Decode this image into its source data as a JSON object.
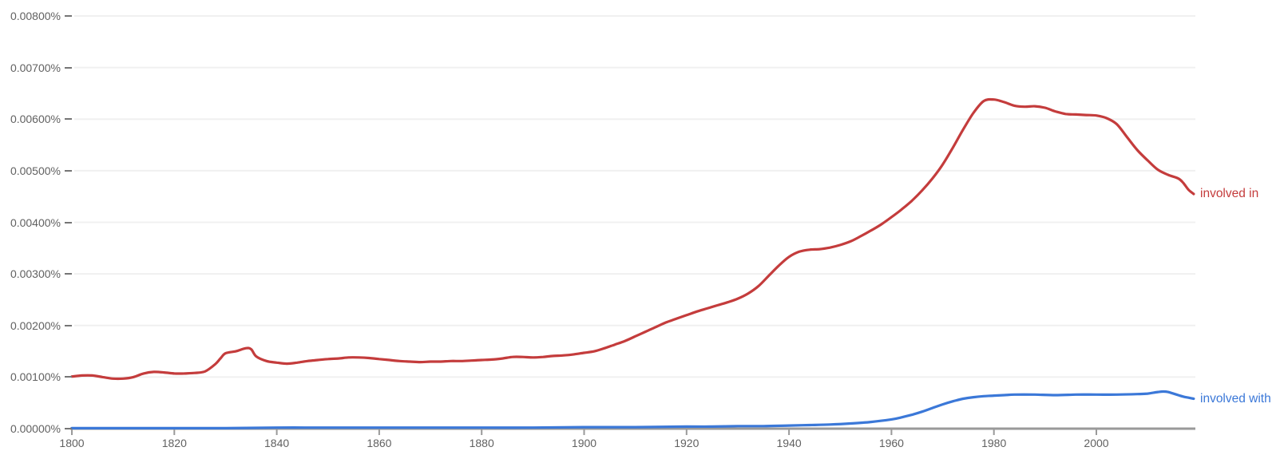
{
  "chart_data": {
    "type": "line",
    "title": "",
    "xlabel": "",
    "ylabel": "",
    "xlim": [
      1800,
      2019
    ],
    "ylim": [
      0,
      0.008
    ],
    "grid": "horizontal",
    "legend_position": "end-of-line-labels",
    "x_ticks": [
      1800,
      1820,
      1840,
      1860,
      1880,
      1900,
      1920,
      1940,
      1960,
      1980,
      2000
    ],
    "y_tick_values": [
      0,
      0.001,
      0.002,
      0.003,
      0.004,
      0.005,
      0.006,
      0.007,
      0.008
    ],
    "y_tick_labels": [
      "0.00000%",
      "0.00100%",
      "0.00200%",
      "0.00300%",
      "0.00400%",
      "0.00500%",
      "0.00600%",
      "0.00700%",
      "0.00800%"
    ],
    "series": [
      {
        "name": "involved in",
        "color": "#c43c3c",
        "x": [
          1800,
          1802,
          1804,
          1806,
          1808,
          1810,
          1812,
          1814,
          1816,
          1818,
          1820,
          1822,
          1824,
          1826,
          1828,
          1829,
          1830,
          1832,
          1834,
          1835,
          1836,
          1838,
          1840,
          1842,
          1844,
          1846,
          1848,
          1850,
          1852,
          1854,
          1856,
          1858,
          1860,
          1862,
          1864,
          1866,
          1868,
          1870,
          1872,
          1874,
          1876,
          1878,
          1880,
          1882,
          1884,
          1886,
          1888,
          1890,
          1892,
          1894,
          1896,
          1898,
          1900,
          1902,
          1904,
          1906,
          1908,
          1910,
          1912,
          1914,
          1916,
          1918,
          1920,
          1922,
          1924,
          1926,
          1928,
          1930,
          1932,
          1934,
          1936,
          1938,
          1940,
          1942,
          1944,
          1946,
          1948,
          1950,
          1952,
          1954,
          1956,
          1958,
          1960,
          1962,
          1964,
          1966,
          1968,
          1970,
          1972,
          1974,
          1976,
          1978,
          1980,
          1982,
          1984,
          1986,
          1988,
          1990,
          1992,
          1994,
          1996,
          1998,
          2000,
          2002,
          2004,
          2006,
          2008,
          2010,
          2012,
          2014,
          2016,
          2017,
          2018,
          2019
        ],
        "values": [
          0.00101,
          0.00103,
          0.00103,
          0.001,
          0.00097,
          0.00097,
          0.001,
          0.00107,
          0.0011,
          0.00109,
          0.00107,
          0.00107,
          0.00108,
          0.00111,
          0.00125,
          0.00136,
          0.00146,
          0.0015,
          0.00156,
          0.00154,
          0.0014,
          0.00131,
          0.00128,
          0.00126,
          0.00128,
          0.00131,
          0.00133,
          0.00135,
          0.00136,
          0.00138,
          0.00138,
          0.00137,
          0.00135,
          0.00133,
          0.00131,
          0.0013,
          0.00129,
          0.0013,
          0.0013,
          0.00131,
          0.00131,
          0.00132,
          0.00133,
          0.00134,
          0.00136,
          0.00139,
          0.00139,
          0.00138,
          0.00139,
          0.00141,
          0.00142,
          0.00144,
          0.00147,
          0.0015,
          0.00156,
          0.00163,
          0.0017,
          0.00179,
          0.00188,
          0.00197,
          0.00206,
          0.00213,
          0.0022,
          0.00227,
          0.00233,
          0.00239,
          0.00245,
          0.00252,
          0.00262,
          0.00276,
          0.00296,
          0.00316,
          0.00333,
          0.00343,
          0.00347,
          0.00348,
          0.00351,
          0.00356,
          0.00363,
          0.00373,
          0.00384,
          0.00396,
          0.0041,
          0.00425,
          0.00442,
          0.00462,
          0.00485,
          0.00512,
          0.00545,
          0.0058,
          0.00612,
          0.00635,
          0.00638,
          0.00633,
          0.00626,
          0.00624,
          0.00625,
          0.00622,
          0.00615,
          0.0061,
          0.00609,
          0.00608,
          0.00607,
          0.00602,
          0.0059,
          0.00565,
          0.0054,
          0.0052,
          0.00502,
          0.00492,
          0.00485,
          0.00476,
          0.00463,
          0.00455
        ]
      },
      {
        "name": "involved with",
        "color": "#3b78d8",
        "x": [
          1800,
          1810,
          1820,
          1830,
          1840,
          1850,
          1860,
          1870,
          1880,
          1890,
          1900,
          1910,
          1920,
          1925,
          1930,
          1935,
          1940,
          1944,
          1948,
          1952,
          1956,
          1960,
          1962,
          1964,
          1966,
          1968,
          1970,
          1972,
          1974,
          1976,
          1978,
          1980,
          1982,
          1984,
          1988,
          1992,
          1996,
          2000,
          2004,
          2008,
          2010,
          2012,
          2013,
          2014,
          2016,
          2017,
          2018,
          2019
        ],
        "values": [
          1e-05,
          1e-05,
          1e-05,
          1e-05,
          2e-05,
          2e-05,
          2e-05,
          2e-05,
          2e-05,
          2e-05,
          3e-05,
          3e-05,
          4e-05,
          4e-05,
          5e-05,
          5e-05,
          6e-05,
          7e-05,
          8e-05,
          0.0001,
          0.00013,
          0.00018,
          0.00022,
          0.00027,
          0.00033,
          0.0004,
          0.00047,
          0.00053,
          0.00058,
          0.00061,
          0.00063,
          0.00064,
          0.00065,
          0.00066,
          0.00066,
          0.00065,
          0.00066,
          0.00066,
          0.00066,
          0.00067,
          0.00068,
          0.00071,
          0.00072,
          0.00071,
          0.00065,
          0.00062,
          0.0006,
          0.00058
        ]
      }
    ]
  },
  "styles": {
    "background": "#ffffff",
    "axis_color": "#9a9a9a",
    "tick_color": "#9a9a9a",
    "grid_color": "#f0f0f0",
    "label_color": "#616161",
    "dash_color": "#757575"
  }
}
